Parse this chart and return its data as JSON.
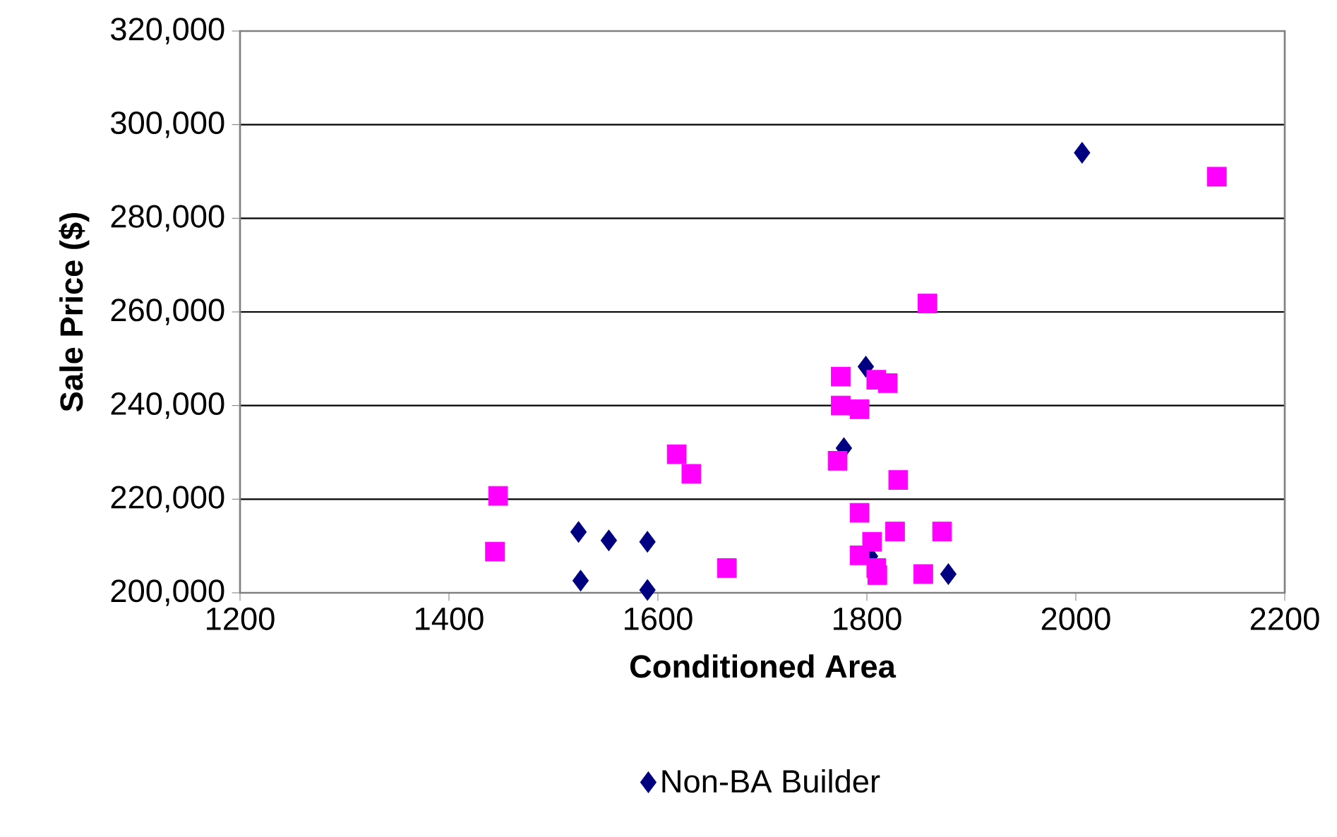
{
  "chart_data": {
    "type": "scatter",
    "xlabel": "Conditioned Area",
    "ylabel": "Sale Price ($)",
    "xlim": [
      1200,
      2200
    ],
    "xticks": [
      1200,
      1400,
      1600,
      1800,
      2000,
      2200
    ],
    "ylim": [
      200000,
      320000
    ],
    "yticks": [
      {
        "value": 200000,
        "label": "200,000"
      },
      {
        "value": 220000,
        "label": "220,000"
      },
      {
        "value": 240000,
        "label": "240,000"
      },
      {
        "value": 260000,
        "label": "260,000"
      },
      {
        "value": 280000,
        "label": "280,000"
      },
      {
        "value": 300000,
        "label": "300,000"
      },
      {
        "value": 320000,
        "label": "320,000"
      }
    ],
    "grid": "y",
    "legend": "bottom",
    "series": [
      {
        "name": "Non-BA Builder",
        "color": "#000080",
        "marker": "diamond",
        "x": [
          1524,
          1553,
          1590,
          1526,
          1590,
          1799,
          1778,
          1803,
          1878,
          2006
        ],
        "values": [
          213000,
          211200,
          210900,
          202600,
          200600,
          248300,
          230900,
          207800,
          204000,
          294000
        ]
      },
      {
        "color": "#ff00ff",
        "marker": "square",
        "x": [
          1447,
          1444,
          1618,
          1632,
          1666,
          1775,
          1775,
          1793,
          1809,
          1820,
          1772,
          1830,
          1793,
          1805,
          1827,
          1872,
          1793,
          1809,
          1810,
          1854,
          1858,
          2135
        ],
        "values": [
          220700,
          208800,
          229600,
          225400,
          205300,
          246200,
          240000,
          239200,
          245500,
          244800,
          228200,
          224100,
          217100,
          210900,
          213100,
          213100,
          208000,
          205300,
          203800,
          204000,
          261800,
          288900
        ]
      }
    ]
  }
}
